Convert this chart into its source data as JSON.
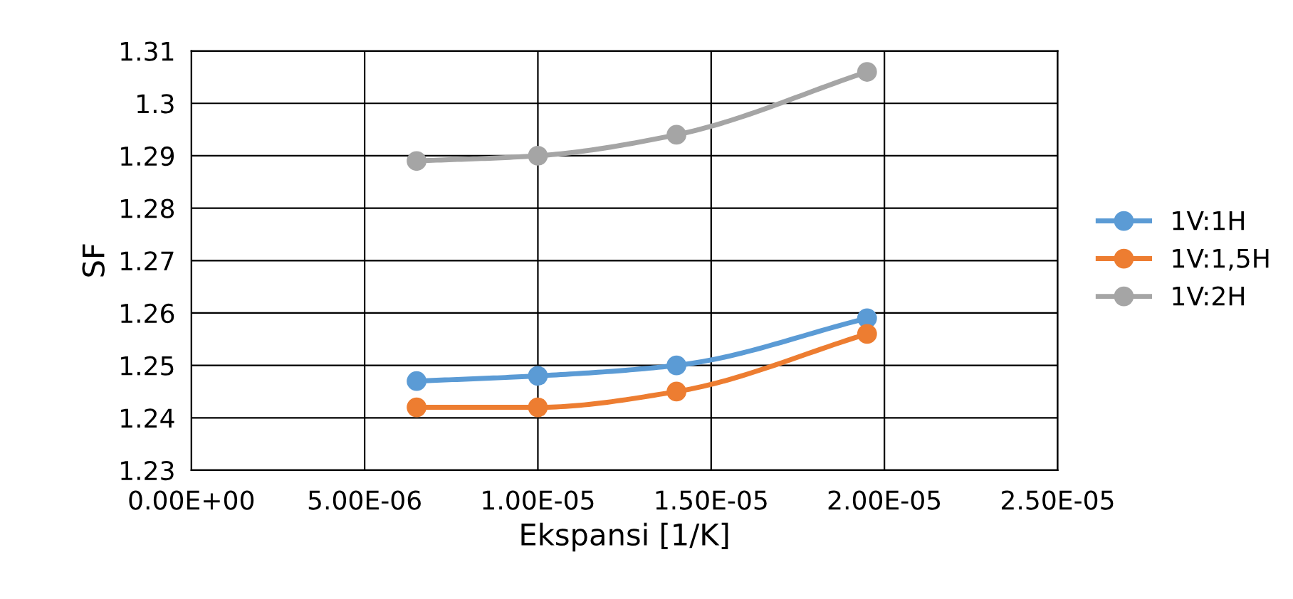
{
  "chart_data": {
    "type": "line",
    "xlabel": "Ekspansi [1/K]",
    "ylabel": "SF",
    "x": [
      6.5e-06,
      1e-05,
      1.4e-05,
      1.95e-05
    ],
    "series": [
      {
        "name": "1V:1H",
        "color": "#5b9bd5",
        "values": [
          1.247,
          1.248,
          1.25,
          1.259
        ]
      },
      {
        "name": "1V:1,5H",
        "color": "#ed7d31",
        "values": [
          1.242,
          1.242,
          1.245,
          1.256
        ]
      },
      {
        "name": "1V:2H",
        "color": "#a5a5a5",
        "values": [
          1.289,
          1.29,
          1.294,
          1.306
        ]
      }
    ],
    "xlim": [
      0,
      2.5e-05
    ],
    "xticks": [
      {
        "value": 0,
        "label": "0.00E+00"
      },
      {
        "value": 5e-06,
        "label": "5.00E-06"
      },
      {
        "value": 1e-05,
        "label": "1.00E-05"
      },
      {
        "value": 1.5e-05,
        "label": "1.50E-05"
      },
      {
        "value": 2e-05,
        "label": "2.00E-05"
      },
      {
        "value": 2.5e-05,
        "label": "2.50E-05"
      }
    ],
    "ylim": [
      1.23,
      1.31
    ],
    "yticks": [
      1.23,
      1.24,
      1.25,
      1.26,
      1.27,
      1.28,
      1.29,
      1.3,
      1.31
    ],
    "grid": true,
    "legend": "right",
    "marker": "circle",
    "line_style": "solid"
  }
}
